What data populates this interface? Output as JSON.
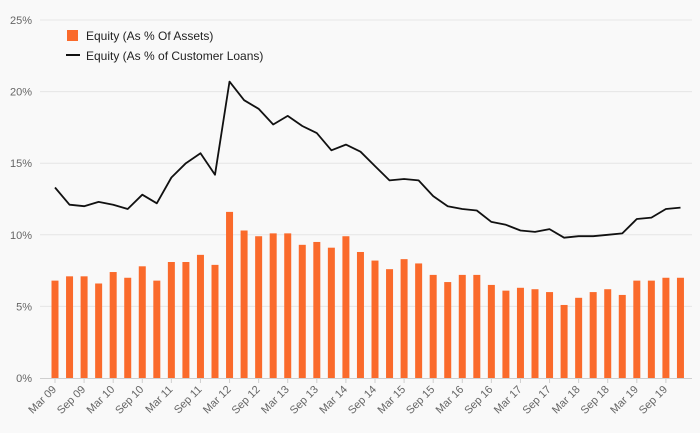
{
  "chart_data": {
    "type": "bar+line",
    "x": [
      "Mar 09",
      "Jun 09",
      "Sep 09",
      "Dec 09",
      "Mar 10",
      "Jun 10",
      "Sep 10",
      "Dec 10",
      "Mar 11",
      "Jun 11",
      "Sep 11",
      "Dec 11",
      "Mar 12",
      "Jun 12",
      "Sep 12",
      "Dec 12",
      "Mar 13",
      "Jun 13",
      "Sep 13",
      "Dec 13",
      "Mar 14",
      "Jun 14",
      "Sep 14",
      "Dec 14",
      "Mar 15",
      "Jun 15",
      "Sep 15",
      "Dec 15",
      "Mar 16",
      "Jun 16",
      "Sep 16",
      "Dec 16",
      "Mar 17",
      "Jun 17",
      "Sep 17",
      "Dec 17",
      "Mar 18",
      "Jun 18",
      "Sep 18",
      "Dec 18",
      "Mar 19",
      "Jun 19",
      "Sep 19",
      "Dec 19"
    ],
    "xtick_labels": [
      "Mar 09",
      "Sep 09",
      "Mar 10",
      "Sep 10",
      "Mar 11",
      "Sep 11",
      "Mar 12",
      "Sep 12",
      "Mar 13",
      "Sep 13",
      "Mar 14",
      "Sep 14",
      "Mar 15",
      "Sep 15",
      "Mar 16",
      "Sep 16",
      "Mar 17",
      "Sep 17",
      "Mar 18",
      "Sep 18",
      "Mar 19",
      "Sep 19"
    ],
    "series": [
      {
        "name": "Equity (As % Of Assets)",
        "type": "bar",
        "color": "#fa6a2b",
        "values": [
          6.8,
          7.1,
          7.1,
          6.6,
          7.4,
          7.0,
          7.8,
          6.8,
          8.1,
          8.1,
          8.6,
          7.9,
          11.6,
          10.3,
          9.9,
          10.1,
          10.1,
          9.3,
          9.5,
          9.1,
          9.9,
          8.8,
          8.2,
          7.6,
          8.3,
          8.0,
          7.2,
          6.7,
          7.2,
          7.2,
          6.5,
          6.1,
          6.3,
          6.2,
          6.0,
          5.1,
          5.6,
          6.0,
          6.2,
          5.8,
          6.8,
          6.8,
          7.0,
          7.0
        ]
      },
      {
        "name": "Equity (As % of Customer Loans)",
        "type": "line",
        "color": "#111111",
        "values": [
          13.3,
          12.1,
          12.0,
          12.3,
          12.1,
          11.8,
          12.8,
          12.2,
          14.0,
          15.0,
          15.7,
          14.2,
          20.7,
          19.4,
          18.8,
          17.7,
          18.3,
          17.6,
          17.1,
          15.9,
          16.3,
          15.8,
          14.8,
          13.8,
          13.9,
          13.8,
          12.7,
          12.0,
          11.8,
          11.7,
          10.9,
          10.7,
          10.3,
          10.2,
          10.4,
          9.8,
          9.9,
          9.9,
          10.0,
          10.1,
          11.1,
          11.2,
          11.8,
          11.9
        ]
      }
    ],
    "y_ticks": [
      "0%",
      "5%",
      "10%",
      "15%",
      "20%",
      "25%"
    ],
    "ylim": [
      0,
      25
    ],
    "grid": true,
    "legend_position": "top-left"
  }
}
